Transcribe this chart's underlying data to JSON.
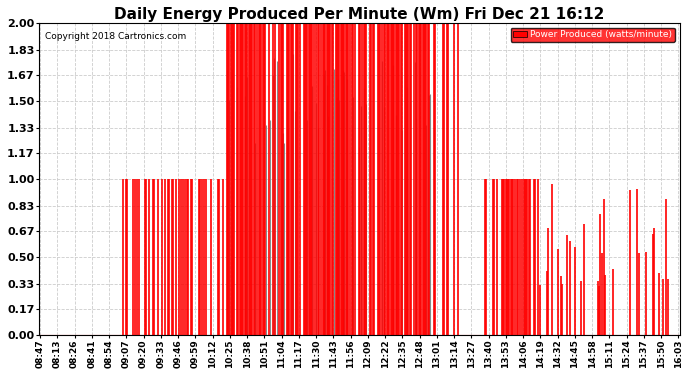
{
  "title": "Daily Energy Produced Per Minute (Wm) Fri Dec 21 16:12",
  "copyright": "Copyright 2018 Cartronics.com",
  "legend_label": "Power Produced (watts/minute)",
  "legend_bg": "#ff0000",
  "legend_text_color": "#ffffff",
  "ylim": [
    0.0,
    2.0
  ],
  "yticks": [
    0.0,
    0.17,
    0.33,
    0.5,
    0.67,
    0.83,
    1.0,
    1.17,
    1.33,
    1.5,
    1.67,
    1.83,
    2.0
  ],
  "ytick_labels": [
    "0.00",
    "0.17",
    "0.33",
    "0.50",
    "0.67",
    "0.83",
    "1.00",
    "1.17",
    "1.33",
    "1.50",
    "1.67",
    "1.83",
    "2.00"
  ],
  "bar_color": "#ff0000",
  "gray_color": "#888888",
  "grid_color": "#cccccc",
  "background_color": "#ffffff",
  "title_fontsize": 11,
  "xtick_fontsize": 6.5,
  "ytick_fontsize": 8,
  "xtick_labels": [
    "08:47",
    "08:13",
    "08:26",
    "08:41",
    "08:54",
    "09:07",
    "09:20",
    "09:33",
    "09:46",
    "09:59",
    "10:12",
    "10:25",
    "10:38",
    "10:51",
    "11:04",
    "11:17",
    "11:30",
    "11:43",
    "11:56",
    "12:09",
    "12:22",
    "12:35",
    "12:48",
    "13:01",
    "13:14",
    "13:27",
    "13:40",
    "13:53",
    "14:06",
    "14:19",
    "14:32",
    "14:45",
    "14:58",
    "15:11",
    "15:24",
    "15:37",
    "15:50",
    "16:03"
  ],
  "num_minutes": 500,
  "level_low": 1.0,
  "level_high": 2.0,
  "level_zero": 0.0
}
